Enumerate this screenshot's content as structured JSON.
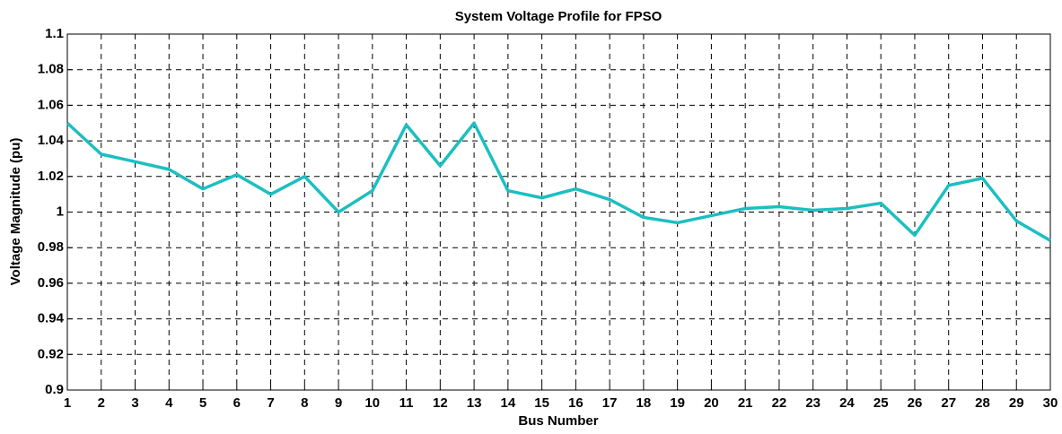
{
  "chart_data": {
    "type": "line",
    "title": "System Voltage Profile for FPSO",
    "x_label": "Bus Number",
    "y_label": "Voltage Magnitude (pu)",
    "x": [
      1,
      2,
      3,
      4,
      5,
      6,
      7,
      8,
      9,
      10,
      11,
      12,
      13,
      14,
      15,
      16,
      17,
      18,
      19,
      20,
      21,
      22,
      23,
      24,
      25,
      26,
      27,
      28,
      29,
      30
    ],
    "series": [
      {
        "color": "#1bbfc1",
        "values": [
          1.05,
          1.0325,
          1.0283,
          1.024,
          1.013,
          1.021,
          1.01,
          1.02,
          1.0,
          1.012,
          1.049,
          1.026,
          1.05,
          1.012,
          1.008,
          1.013,
          1.007,
          0.997,
          0.994,
          0.998,
          1.002,
          1.003,
          1.001,
          1.002,
          1.005,
          0.987,
          1.015,
          1.019,
          0.995,
          0.984
        ]
      }
    ],
    "xlim": [
      1,
      30
    ],
    "xticks": [
      1,
      2,
      3,
      4,
      5,
      6,
      7,
      8,
      9,
      10,
      11,
      12,
      13,
      14,
      15,
      16,
      17,
      18,
      19,
      20,
      21,
      22,
      23,
      24,
      25,
      26,
      27,
      28,
      29,
      30
    ],
    "ylim": [
      0.9,
      1.1
    ],
    "yticks": [
      0.9,
      0.92,
      0.94,
      0.96,
      0.98,
      1,
      1.02,
      1.04,
      1.06,
      1.08,
      1.1
    ],
    "grid": true
  }
}
